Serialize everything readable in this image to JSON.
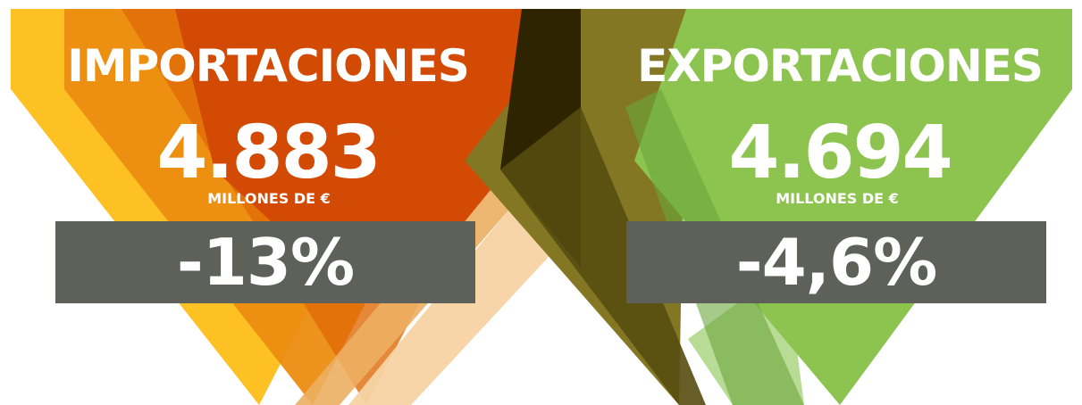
{
  "colors": {
    "import_dark": "#d24a04",
    "import_mid": "#e57f12",
    "import_yellow": "#fdc124",
    "import_light": "#f7d3a3",
    "export_green": "#8cc44f",
    "export_olive": "#837724",
    "export_dark": "#2e2400",
    "export_lightgreen": "#b8dc96",
    "band": "#5e605a",
    "text": "#ffffff"
  },
  "imports": {
    "title": "IMPORTACIONES",
    "value": "4.883",
    "unit": "MILLONES DE €",
    "change": "-13%"
  },
  "exports": {
    "title": "EXPORTACIONES",
    "value": "4.694",
    "unit": "MILLONES DE €",
    "change": "-4,6%"
  }
}
